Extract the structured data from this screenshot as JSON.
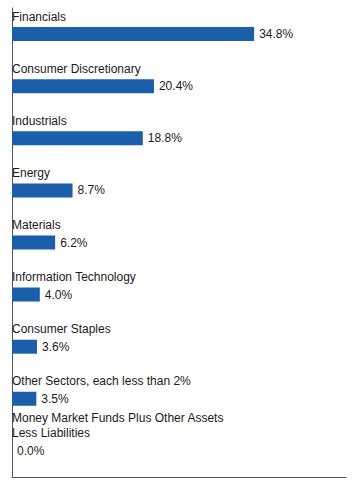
{
  "chart_data": {
    "type": "bar",
    "orientation": "horizontal",
    "categories": [
      "Financials",
      "Consumer Discretionary",
      "Industrials",
      "Energy",
      "Materials",
      "Information Technology",
      "Consumer Staples",
      "Other Sectors, each less than 2%",
      "Money Market Funds Plus Other Assets\nLess Liabilities"
    ],
    "values": [
      34.8,
      20.4,
      18.8,
      8.7,
      6.2,
      4.0,
      3.6,
      3.5,
      0.0
    ],
    "value_labels": [
      "34.8%",
      "20.4%",
      "18.8%",
      "8.7%",
      "6.2%",
      "4.0%",
      "3.6%",
      "3.5%",
      "0.0%"
    ],
    "data_labels": true,
    "color": "#1B5FAA",
    "xlim": [
      0,
      48
    ],
    "tick_labels": false,
    "grid": false
  }
}
